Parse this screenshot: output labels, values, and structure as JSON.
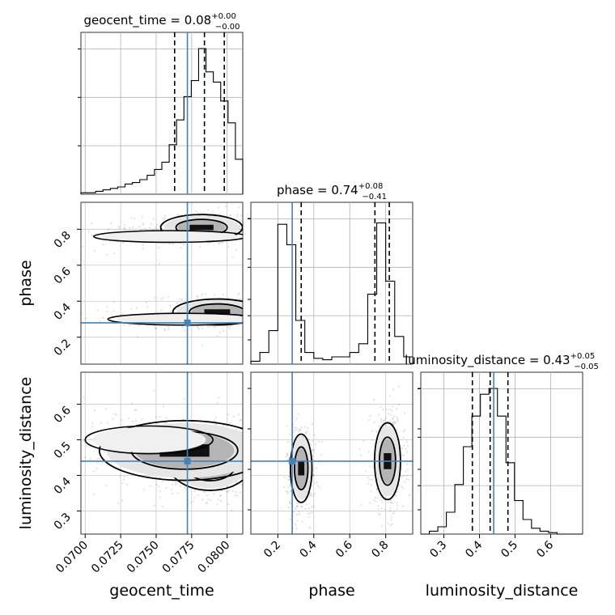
{
  "chart_data": {
    "type": "corner",
    "truth_color": "#4682b4",
    "grid": true,
    "parameters": [
      {
        "name": "geocent_time",
        "title_prefix": "geocent_time = ",
        "median_label": "0.08",
        "upper_err": "+0.00",
        "lower_err": "−0.00",
        "range": [
          0.0697,
          0.0811
        ],
        "ticks": [
          0.07,
          0.0725,
          0.075,
          0.0775,
          0.08
        ],
        "tick_labels": [
          "0.0700",
          "0.0725",
          "0.0750",
          "0.0775",
          "0.0800"
        ],
        "truth": 0.0772,
        "quantiles": [
          0.0763,
          0.0784,
          0.0798
        ],
        "hist": [
          0.01,
          0.01,
          0.02,
          0.03,
          0.04,
          0.05,
          0.07,
          0.08,
          0.1,
          0.13,
          0.17,
          0.22,
          0.34,
          0.51,
          0.67,
          0.78,
          1.0,
          0.84,
          0.77,
          0.64,
          0.49,
          0.24
        ]
      },
      {
        "name": "phase",
        "title_prefix": "phase = ",
        "median_label": "0.74",
        "upper_err": "+0.08",
        "lower_err": "−0.41",
        "range": [
          0.05,
          0.95
        ],
        "ticks": [
          0.2,
          0.4,
          0.6,
          0.8
        ],
        "tick_labels": [
          "0.2",
          "0.4",
          "0.6",
          "0.8"
        ],
        "truth": 0.28,
        "quantiles": [
          0.33,
          0.74,
          0.82
        ],
        "hist": [
          0.02,
          0.08,
          0.23,
          0.96,
          0.82,
          0.3,
          0.08,
          0.04,
          0.03,
          0.05,
          0.05,
          0.08,
          0.14,
          0.48,
          0.97,
          0.57,
          0.19,
          0.05
        ]
      },
      {
        "name": "luminosity_distance",
        "title_prefix": "luminosity_distance = ",
        "median_label": "0.43",
        "upper_err": "+0.05",
        "lower_err": "−0.05",
        "range": [
          0.235,
          0.69
        ],
        "ticks": [
          0.3,
          0.4,
          0.5,
          0.6
        ],
        "tick_labels": [
          "0.3",
          "0.4",
          "0.5",
          "0.6"
        ],
        "truth": 0.44,
        "quantiles": [
          0.38,
          0.43,
          0.48
        ],
        "hist": [
          0.0,
          0.02,
          0.05,
          0.15,
          0.34,
          0.6,
          0.81,
          0.96,
          1.0,
          0.81,
          0.49,
          0.23,
          0.1,
          0.04,
          0.02,
          0.01,
          0.0,
          0.0,
          0.0
        ]
      }
    ],
    "modes_2d": {
      "geocent_time|phase": [
        {
          "x": 0.0782,
          "y": 0.81,
          "sx": 0.0012,
          "sy": 0.03,
          "w": 1.0
        },
        {
          "x": 0.076,
          "y": 0.76,
          "sx": 0.003,
          "sy": 0.025,
          "w": 0.4
        },
        {
          "x": 0.0793,
          "y": 0.34,
          "sx": 0.0013,
          "sy": 0.03,
          "w": 1.0
        },
        {
          "x": 0.077,
          "y": 0.3,
          "sx": 0.003,
          "sy": 0.025,
          "w": 0.4
        }
      ],
      "geocent_time|luminosity_distance": [
        {
          "x": 0.0788,
          "y": 0.43,
          "sx": 0.0012,
          "sy": 0.03,
          "w": 1.0
        },
        {
          "x": 0.077,
          "y": 0.47,
          "sx": 0.0025,
          "sy": 0.035,
          "w": 0.6
        },
        {
          "x": 0.0745,
          "y": 0.5,
          "sx": 0.0025,
          "sy": 0.03,
          "w": 0.25
        }
      ],
      "phase|luminosity_distance": [
        {
          "x": 0.33,
          "y": 0.42,
          "sx": 0.025,
          "sy": 0.04,
          "w": 1.0
        },
        {
          "x": 0.81,
          "y": 0.44,
          "sx": 0.03,
          "sy": 0.045,
          "w": 1.0
        }
      ]
    }
  }
}
